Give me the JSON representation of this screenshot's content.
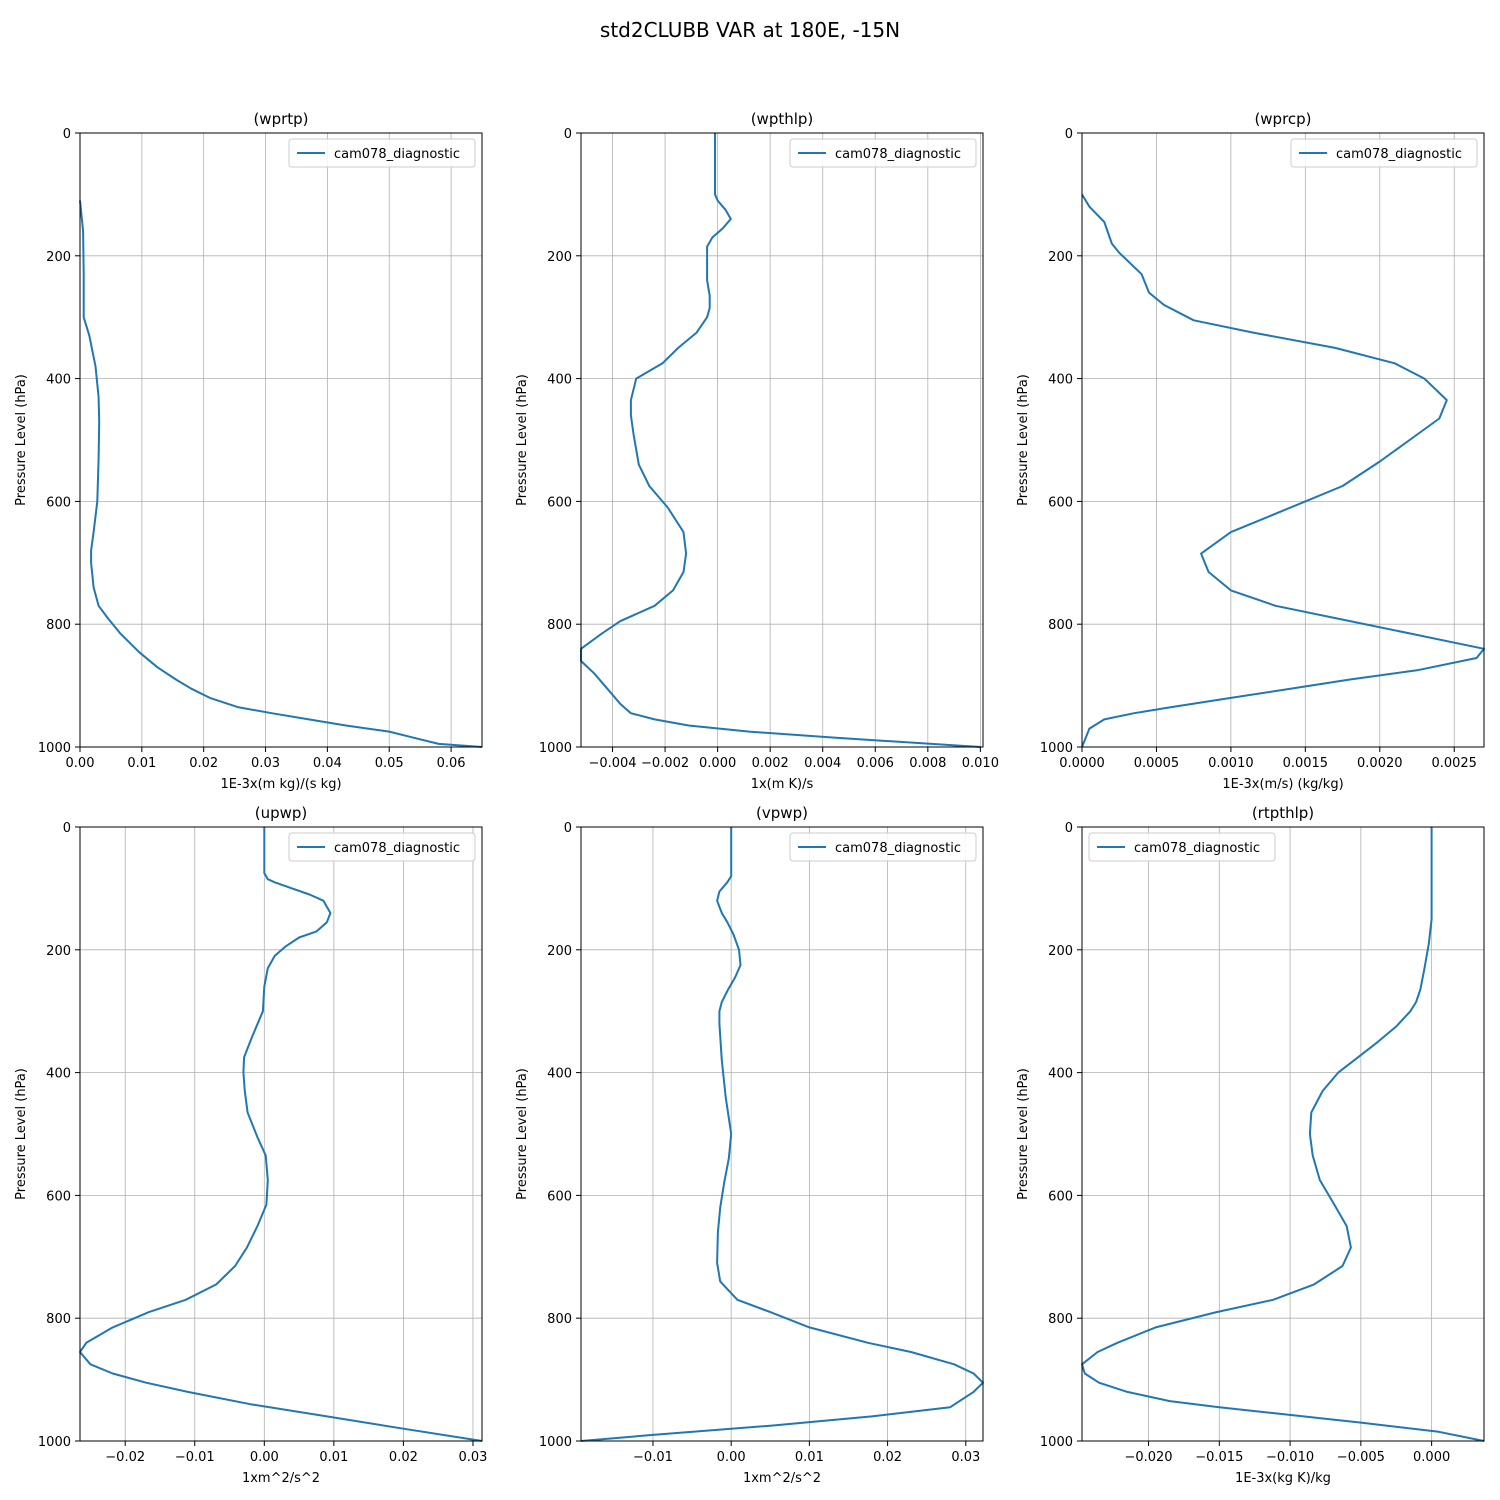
{
  "figure": {
    "title": "std2CLUBB VAR at 180E, -15N",
    "colors": {
      "series": "#1f77b4",
      "grid": "#b0b0b0"
    }
  },
  "chart_data": [
    {
      "type": "line",
      "title": "(wprtp)",
      "xlabel": "1E-3x(m kg)/(s kg)",
      "ylabel": "Pressure Level (hPa)",
      "xlim": [
        0,
        0.065
      ],
      "ylim": [
        1000,
        0
      ],
      "xticks": [
        0,
        0.01,
        0.02,
        0.03,
        0.04,
        0.05,
        0.06
      ],
      "xtick_labels": [
        "0.00",
        "0.01",
        "0.02",
        "0.03",
        "0.04",
        "0.05",
        "0.06"
      ],
      "yticks": [
        0,
        200,
        400,
        600,
        800,
        1000
      ],
      "ytick_labels": [
        "0",
        "200",
        "400",
        "600",
        "800",
        "1000"
      ],
      "grid": true,
      "legend": "upper right",
      "series": [
        {
          "name": "cam078_diagnostic",
          "y": [
            110,
            160,
            230,
            300,
            330,
            380,
            430,
            470,
            530,
            600,
            650,
            680,
            700,
            740,
            770,
            790,
            815,
            845,
            870,
            890,
            905,
            920,
            935,
            945,
            955,
            965,
            975,
            985,
            995,
            1000
          ],
          "x": [
            0.0,
            0.0005,
            0.0006,
            0.0006,
            0.0015,
            0.0025,
            0.003,
            0.0031,
            0.003,
            0.0028,
            0.0022,
            0.0018,
            0.0018,
            0.0022,
            0.003,
            0.0045,
            0.0065,
            0.0095,
            0.0125,
            0.0155,
            0.018,
            0.021,
            0.0255,
            0.031,
            0.037,
            0.043,
            0.05,
            0.054,
            0.058,
            0.065
          ]
        }
      ]
    },
    {
      "type": "line",
      "title": "(wpthlp)",
      "xlabel": "1x(m K)/s",
      "ylabel": "Pressure Level (hPa)",
      "xlim": [
        -0.0052,
        0.0101
      ],
      "ylim": [
        1000,
        0
      ],
      "xticks": [
        -0.004,
        -0.002,
        0.0,
        0.002,
        0.004,
        0.006,
        0.008,
        0.01
      ],
      "xtick_labels": [
        "−0.004",
        "−0.002",
        "0.000",
        "0.002",
        "0.004",
        "0.006",
        "0.008",
        "0.010"
      ],
      "yticks": [
        0,
        200,
        400,
        600,
        800,
        1000
      ],
      "ytick_labels": [
        "0",
        "200",
        "400",
        "600",
        "800",
        "1000"
      ],
      "grid": true,
      "legend": "upper right",
      "series": [
        {
          "name": "cam078_diagnostic",
          "y": [
            0,
            10,
            80,
            100,
            110,
            125,
            140,
            155,
            170,
            185,
            200,
            220,
            240,
            265,
            285,
            300,
            325,
            350,
            375,
            400,
            435,
            460,
            490,
            540,
            575,
            610,
            650,
            685,
            715,
            745,
            770,
            795,
            815,
            840,
            860,
            880,
            905,
            930,
            945,
            955,
            965,
            975,
            985,
            1000
          ],
          "x": [
            -0.0001,
            -0.0001,
            -0.0001,
            -0.0001,
            0.0,
            0.0003,
            0.0005,
            0.0002,
            -0.0002,
            -0.0004,
            -0.0004,
            -0.0004,
            -0.0004,
            -0.0003,
            -0.0003,
            -0.0004,
            -0.0008,
            -0.0015,
            -0.0021,
            -0.0031,
            -0.0033,
            -0.0033,
            -0.0032,
            -0.003,
            -0.0026,
            -0.0019,
            -0.0013,
            -0.0012,
            -0.0013,
            -0.0017,
            -0.0024,
            -0.0037,
            -0.0044,
            -0.0052,
            -0.0052,
            -0.0047,
            -0.0042,
            -0.0037,
            -0.0033,
            -0.0024,
            -0.0011,
            0.0012,
            0.0045,
            0.01
          ]
        }
      ]
    },
    {
      "type": "line",
      "title": "(wprcp)",
      "xlabel": "1E-3x(m/s) (kg/kg)",
      "ylabel": "Pressure Level (hPa)",
      "xlim": [
        0,
        0.0027
      ],
      "ylim": [
        1000,
        0
      ],
      "xticks": [
        0,
        0.0005,
        0.001,
        0.0015,
        0.002,
        0.0025
      ],
      "xtick_labels": [
        "0.0000",
        "0.0005",
        "0.0010",
        "0.0015",
        "0.0020",
        "0.0025"
      ],
      "yticks": [
        0,
        200,
        400,
        600,
        800,
        1000
      ],
      "ytick_labels": [
        "0",
        "200",
        "400",
        "600",
        "800",
        "1000"
      ],
      "grid": true,
      "legend": "upper right",
      "series": [
        {
          "name": "cam078_diagnostic",
          "y": [
            100,
            120,
            145,
            180,
            195,
            230,
            260,
            280,
            305,
            325,
            350,
            375,
            400,
            435,
            465,
            500,
            535,
            575,
            600,
            625,
            650,
            685,
            715,
            745,
            770,
            795,
            815,
            840,
            855,
            875,
            890,
            905,
            920,
            935,
            945,
            955,
            970,
            1000
          ],
          "x": [
            0.0,
            5e-05,
            0.00015,
            0.0002,
            0.00025,
            0.0004,
            0.00045,
            0.00055,
            0.00075,
            0.00115,
            0.0017,
            0.0021,
            0.0023,
            0.00245,
            0.0024,
            0.0022,
            0.002,
            0.00175,
            0.0015,
            0.00125,
            0.001,
            0.0008,
            0.00085,
            0.001,
            0.0013,
            0.0018,
            0.0022,
            0.0027,
            0.00265,
            0.00225,
            0.0018,
            0.0014,
            0.001,
            0.0006,
            0.00035,
            0.00015,
            5e-05,
            0.0
          ]
        }
      ]
    },
    {
      "type": "line",
      "title": "(upwp)",
      "xlabel": "1xm^2/s^2",
      "ylabel": "Pressure Level (hPa)",
      "xlim": [
        -0.0265,
        0.0313
      ],
      "ylim": [
        1000,
        0
      ],
      "xticks": [
        -0.02,
        -0.01,
        0.0,
        0.01,
        0.02,
        0.03
      ],
      "xtick_labels": [
        "−0.02",
        "−0.01",
        "0.00",
        "0.01",
        "0.02",
        "0.03"
      ],
      "yticks": [
        0,
        200,
        400,
        600,
        800,
        1000
      ],
      "ytick_labels": [
        "0",
        "200",
        "400",
        "600",
        "800",
        "1000"
      ],
      "grid": true,
      "legend": "upper right",
      "series": [
        {
          "name": "cam078_diagnostic",
          "y": [
            0,
            75,
            85,
            90,
            100,
            110,
            120,
            140,
            155,
            170,
            180,
            195,
            210,
            230,
            260,
            300,
            340,
            375,
            400,
            430,
            465,
            505,
            535,
            575,
            615,
            650,
            685,
            715,
            745,
            770,
            790,
            815,
            840,
            855,
            875,
            890,
            905,
            920,
            940,
            960,
            980,
            1000
          ],
          "x": [
            0.0,
            0.0,
            0.0005,
            0.0015,
            0.004,
            0.0065,
            0.0085,
            0.0095,
            0.009,
            0.0075,
            0.005,
            0.003,
            0.0015,
            0.0005,
            0.0,
            -0.0002,
            -0.0017,
            -0.0029,
            -0.003,
            -0.0028,
            -0.0024,
            -0.001,
            0.0002,
            0.0005,
            0.0003,
            -0.001,
            -0.0025,
            -0.0042,
            -0.0069,
            -0.0113,
            -0.0166,
            -0.0218,
            -0.0256,
            -0.0265,
            -0.025,
            -0.0218,
            -0.017,
            -0.011,
            -0.002,
            0.009,
            0.02,
            0.0313
          ]
        }
      ]
    },
    {
      "type": "line",
      "title": "(vpwp)",
      "xlabel": "1xm^2/s^2",
      "ylabel": "Pressure Level (hPa)",
      "xlim": [
        -0.0192,
        0.0322
      ],
      "ylim": [
        1000,
        0
      ],
      "xticks": [
        -0.01,
        0.0,
        0.01,
        0.02,
        0.03
      ],
      "xtick_labels": [
        "−0.01",
        "0.00",
        "0.01",
        "0.02",
        "0.03"
      ],
      "yticks": [
        0,
        200,
        400,
        600,
        800,
        1000
      ],
      "ytick_labels": [
        "0",
        "200",
        "400",
        "600",
        "800",
        "1000"
      ],
      "grid": true,
      "legend": "upper right",
      "series": [
        {
          "name": "cam078_diagnostic",
          "y": [
            0,
            80,
            90,
            105,
            120,
            140,
            155,
            175,
            200,
            225,
            245,
            265,
            285,
            300,
            320,
            380,
            440,
            500,
            540,
            580,
            620,
            660,
            710,
            740,
            770,
            790,
            815,
            840,
            855,
            875,
            890,
            905,
            920,
            945,
            960,
            975,
            990,
            1000
          ],
          "x": [
            0.0,
            0.0,
            -0.0005,
            -0.0015,
            -0.0018,
            -0.0012,
            -0.0005,
            0.0003,
            0.001,
            0.0012,
            0.0005,
            -0.0004,
            -0.0012,
            -0.0015,
            -0.0015,
            -0.0012,
            -0.0007,
            0.0,
            -0.0003,
            -0.0009,
            -0.0014,
            -0.0017,
            -0.0018,
            -0.0014,
            0.0008,
            0.005,
            0.01,
            0.0175,
            0.023,
            0.0285,
            0.031,
            0.0322,
            0.031,
            0.028,
            0.018,
            0.005,
            -0.01,
            -0.0192
          ]
        }
      ]
    },
    {
      "type": "line",
      "title": "(rtpthlp)",
      "xlabel": "1E-3x(kg K)/kg",
      "ylabel": "Pressure Level (hPa)",
      "xlim": [
        -0.0247,
        0.0037
      ],
      "ylim": [
        1000,
        0
      ],
      "xticks": [
        -0.02,
        -0.015,
        -0.01,
        -0.005,
        0.0
      ],
      "xtick_labels": [
        "−0.020",
        "−0.015",
        "−0.010",
        "−0.005",
        "0.000"
      ],
      "yticks": [
        0,
        200,
        400,
        600,
        800,
        1000
      ],
      "ytick_labels": [
        "0",
        "200",
        "400",
        "600",
        "800",
        "1000"
      ],
      "grid": true,
      "legend": "upper left",
      "series": [
        {
          "name": "cam078_diagnostic",
          "y": [
            0,
            150,
            190,
            230,
            265,
            285,
            300,
            325,
            350,
            375,
            400,
            430,
            465,
            500,
            535,
            575,
            610,
            650,
            685,
            715,
            745,
            770,
            790,
            815,
            840,
            855,
            875,
            890,
            905,
            920,
            935,
            945,
            955,
            970,
            985,
            1000
          ],
          "x": [
            0.0,
            0.0,
            -0.0002,
            -0.0005,
            -0.0008,
            -0.0011,
            -0.0015,
            -0.0025,
            -0.0038,
            -0.0052,
            -0.0066,
            -0.0077,
            -0.0085,
            -0.0086,
            -0.0084,
            -0.0079,
            -0.007,
            -0.006,
            -0.0057,
            -0.0063,
            -0.0083,
            -0.0112,
            -0.0152,
            -0.0195,
            -0.0222,
            -0.0236,
            -0.0247,
            -0.0245,
            -0.0235,
            -0.0215,
            -0.0185,
            -0.015,
            -0.011,
            -0.005,
            0.0005,
            0.0037
          ]
        }
      ]
    }
  ]
}
